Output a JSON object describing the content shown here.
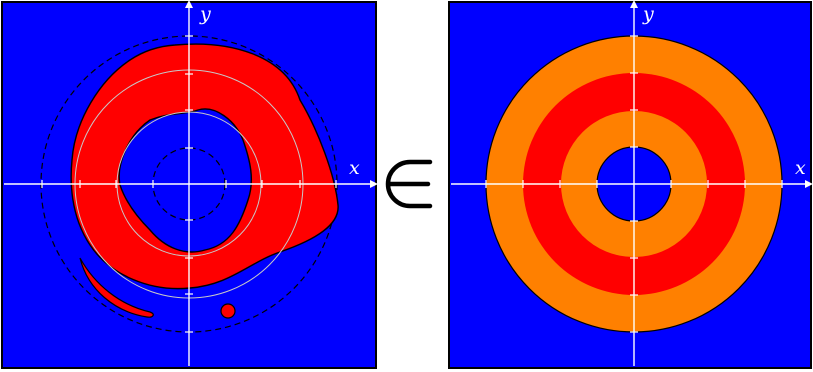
{
  "colors": {
    "panel_background": "#0000ff",
    "region_fill": "#ff0000",
    "ring_orange": "#ff8000",
    "ring_red": "#ff0000",
    "axis": "#ffffff",
    "grid_circle": "#c8c8c8",
    "outline": "#000000"
  },
  "left_panel": {
    "x_label": "x",
    "y_label": "y"
  },
  "right_panel": {
    "x_label": "x",
    "y_label": "y"
  },
  "relation_symbol": "∈"
}
